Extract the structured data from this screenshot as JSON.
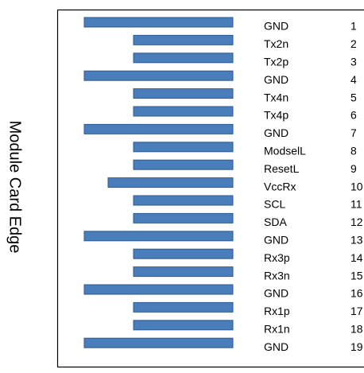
{
  "title": "Module Card Edge",
  "pins": [
    {
      "label": "GND",
      "number": 1
    },
    {
      "label": "Tx2n",
      "number": 2
    },
    {
      "label": "Tx2p",
      "number": 3
    },
    {
      "label": "GND",
      "number": 4
    },
    {
      "label": "Tx4n",
      "number": 5
    },
    {
      "label": "Tx4p",
      "number": 6
    },
    {
      "label": "GND",
      "number": 7
    },
    {
      "label": "ModselL",
      "number": 8
    },
    {
      "label": "ResetL",
      "number": 9
    },
    {
      "label": "VccRx",
      "number": 10
    },
    {
      "label": "SCL",
      "number": 11
    },
    {
      "label": "SDA",
      "number": 12
    },
    {
      "label": "GND",
      "number": 13
    },
    {
      "label": "Rx3p",
      "number": 14
    },
    {
      "label": "Rx3n",
      "number": 15
    },
    {
      "label": "GND",
      "number": 16
    },
    {
      "label": "Rx1p",
      "number": 17
    },
    {
      "label": "Rx1n",
      "number": 18
    },
    {
      "label": "GND",
      "number": 19
    }
  ]
}
